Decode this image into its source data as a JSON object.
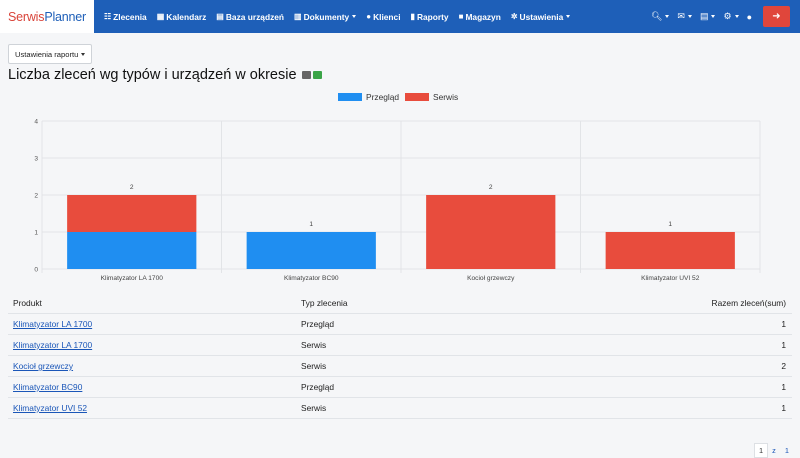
{
  "brand": {
    "part1": "Serwis",
    "part2": "Planner"
  },
  "nav": {
    "items": [
      {
        "icon": "☷",
        "label": "Zlecenia",
        "dropdown": false
      },
      {
        "icon": "▦",
        "label": "Kalendarz",
        "dropdown": false
      },
      {
        "icon": "▤",
        "label": "Baza urządzeń",
        "dropdown": false
      },
      {
        "icon": "▥",
        "label": "Dokumenty",
        "dropdown": true
      },
      {
        "icon": "●",
        "label": "Klienci",
        "dropdown": false
      },
      {
        "icon": "▮",
        "label": "Raporty",
        "dropdown": false
      },
      {
        "icon": "■",
        "label": "Magazyn",
        "dropdown": false
      },
      {
        "icon": "✲",
        "label": "Ustawienia",
        "dropdown": true
      }
    ],
    "right_icons": [
      "search-icon",
      "chat-icon",
      "clipboard-icon",
      "settings-icon",
      "user-icon"
    ]
  },
  "settings_button": "Ustawienia raportu",
  "page_title": "Liczba zleceń wg typów i urządzeń w okresie",
  "colors": {
    "przeglad": "#1f8ef1",
    "serwis": "#e84c3d",
    "nav": "#1e5fb8",
    "logout": "#e0463b"
  },
  "chart_data": {
    "type": "bar",
    "stacked": true,
    "categories": [
      "Klimatyzator LA 1700",
      "Klimatyzator BC90",
      "Kocioł grzewczy",
      "Klimatyzator UVI 52"
    ],
    "series": [
      {
        "name": "Przegląd",
        "values": [
          1,
          1,
          0,
          0
        ]
      },
      {
        "name": "Serwis",
        "values": [
          1,
          0,
          2,
          1
        ]
      }
    ],
    "totals": [
      2,
      1,
      2,
      1
    ],
    "ylim": [
      0,
      4
    ],
    "yticks": [
      0,
      1,
      2,
      3,
      4
    ],
    "legend_position": "top"
  },
  "table": {
    "headers": [
      "Produkt",
      "Typ zlecenia",
      "Razem zleceń(sum)"
    ],
    "rows": [
      {
        "product": "Klimatyzator LA 1700",
        "type": "Przegląd",
        "count": "1"
      },
      {
        "product": "Klimatyzator LA 1700",
        "type": "Serwis",
        "count": "1"
      },
      {
        "product": "Kocioł grzewczy",
        "type": "Serwis",
        "count": "2"
      },
      {
        "product": "Klimatyzator BC90",
        "type": "Przegląd",
        "count": "1"
      },
      {
        "product": "Klimatyzator UVI 52",
        "type": "Serwis",
        "count": "1"
      }
    ]
  },
  "pagination": [
    "1",
    "z",
    "1"
  ]
}
